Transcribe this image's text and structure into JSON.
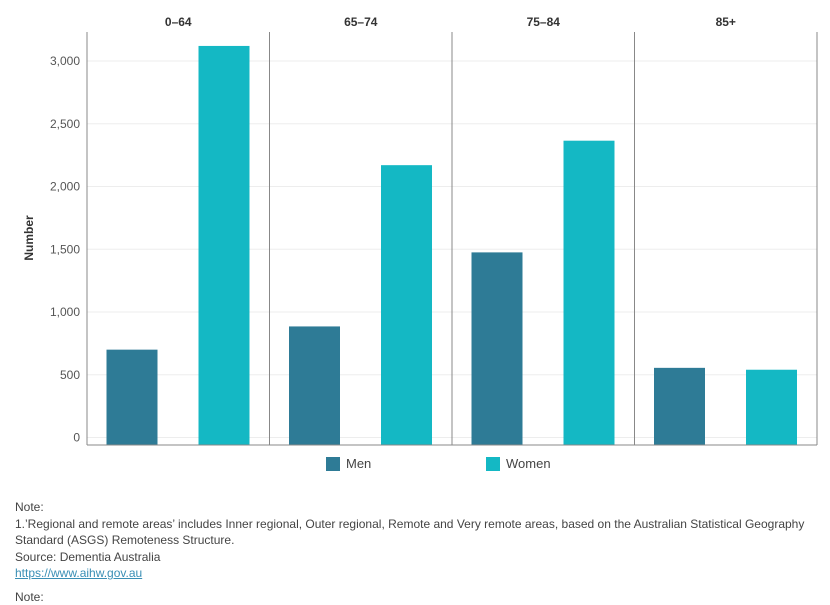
{
  "chart_data": {
    "type": "bar",
    "title": "",
    "ylabel": "Number",
    "ylim": [
      0,
      3300
    ],
    "yticks": [
      0,
      500,
      1000,
      1500,
      2000,
      2500,
      3000
    ],
    "ytick_labels": [
      "0",
      "500",
      "1,000",
      "1,500",
      "2,000",
      "2,500",
      "3,000"
    ],
    "categories": [
      "0–64",
      "65–74",
      "75–84",
      "85+"
    ],
    "series": [
      {
        "name": "Men",
        "color": "#2e7b96",
        "values": [
          700,
          885,
          1475,
          555
        ]
      },
      {
        "name": "Women",
        "color": "#14b8c4",
        "values": [
          3120,
          2170,
          2365,
          540
        ]
      }
    ],
    "grid": true,
    "legend_position": "bottom"
  },
  "legend": {
    "men_label": "Men",
    "women_label": "Women"
  },
  "notes": {
    "heading": "Note:",
    "line1": "1.’Regional and remote areas’ includes Inner regional, Outer regional, Remote and Very remote areas, based on the Australian Statistical Geography Standard (ASGS) Remoteness Structure.",
    "source": "Source: Dementia Australia",
    "link": "https://www.aihw.gov.au",
    "heading2": "Note:"
  }
}
